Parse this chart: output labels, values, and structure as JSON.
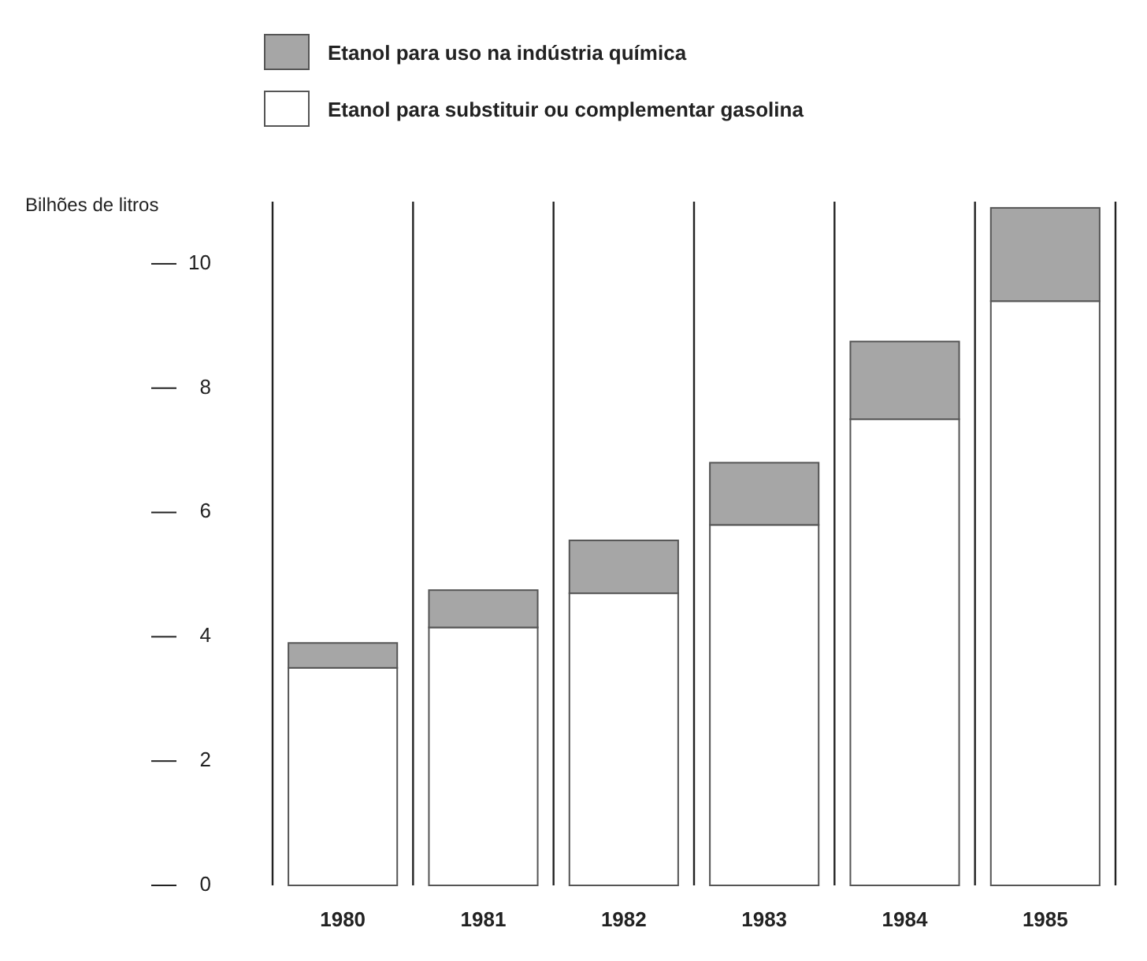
{
  "chart_data": {
    "type": "bar",
    "stacked": true,
    "ylabel": "Bilhões de litros",
    "categories": [
      "1980",
      "1981",
      "1982",
      "1983",
      "1984",
      "1985"
    ],
    "series": [
      {
        "name": "Etanol para substituir ou complementar gasolina",
        "color": "#ffffff",
        "values": [
          3.5,
          4.15,
          4.7,
          5.8,
          7.5,
          9.4
        ]
      },
      {
        "name": "Etanol para uso na indústria química",
        "color": "#a6a6a6",
        "values": [
          0.4,
          0.6,
          0.85,
          1.0,
          1.25,
          1.5
        ]
      }
    ],
    "ylim": [
      0,
      11
    ],
    "yticks": [
      0,
      2,
      4,
      6,
      8,
      10
    ],
    "legend": "top",
    "grid": false
  }
}
